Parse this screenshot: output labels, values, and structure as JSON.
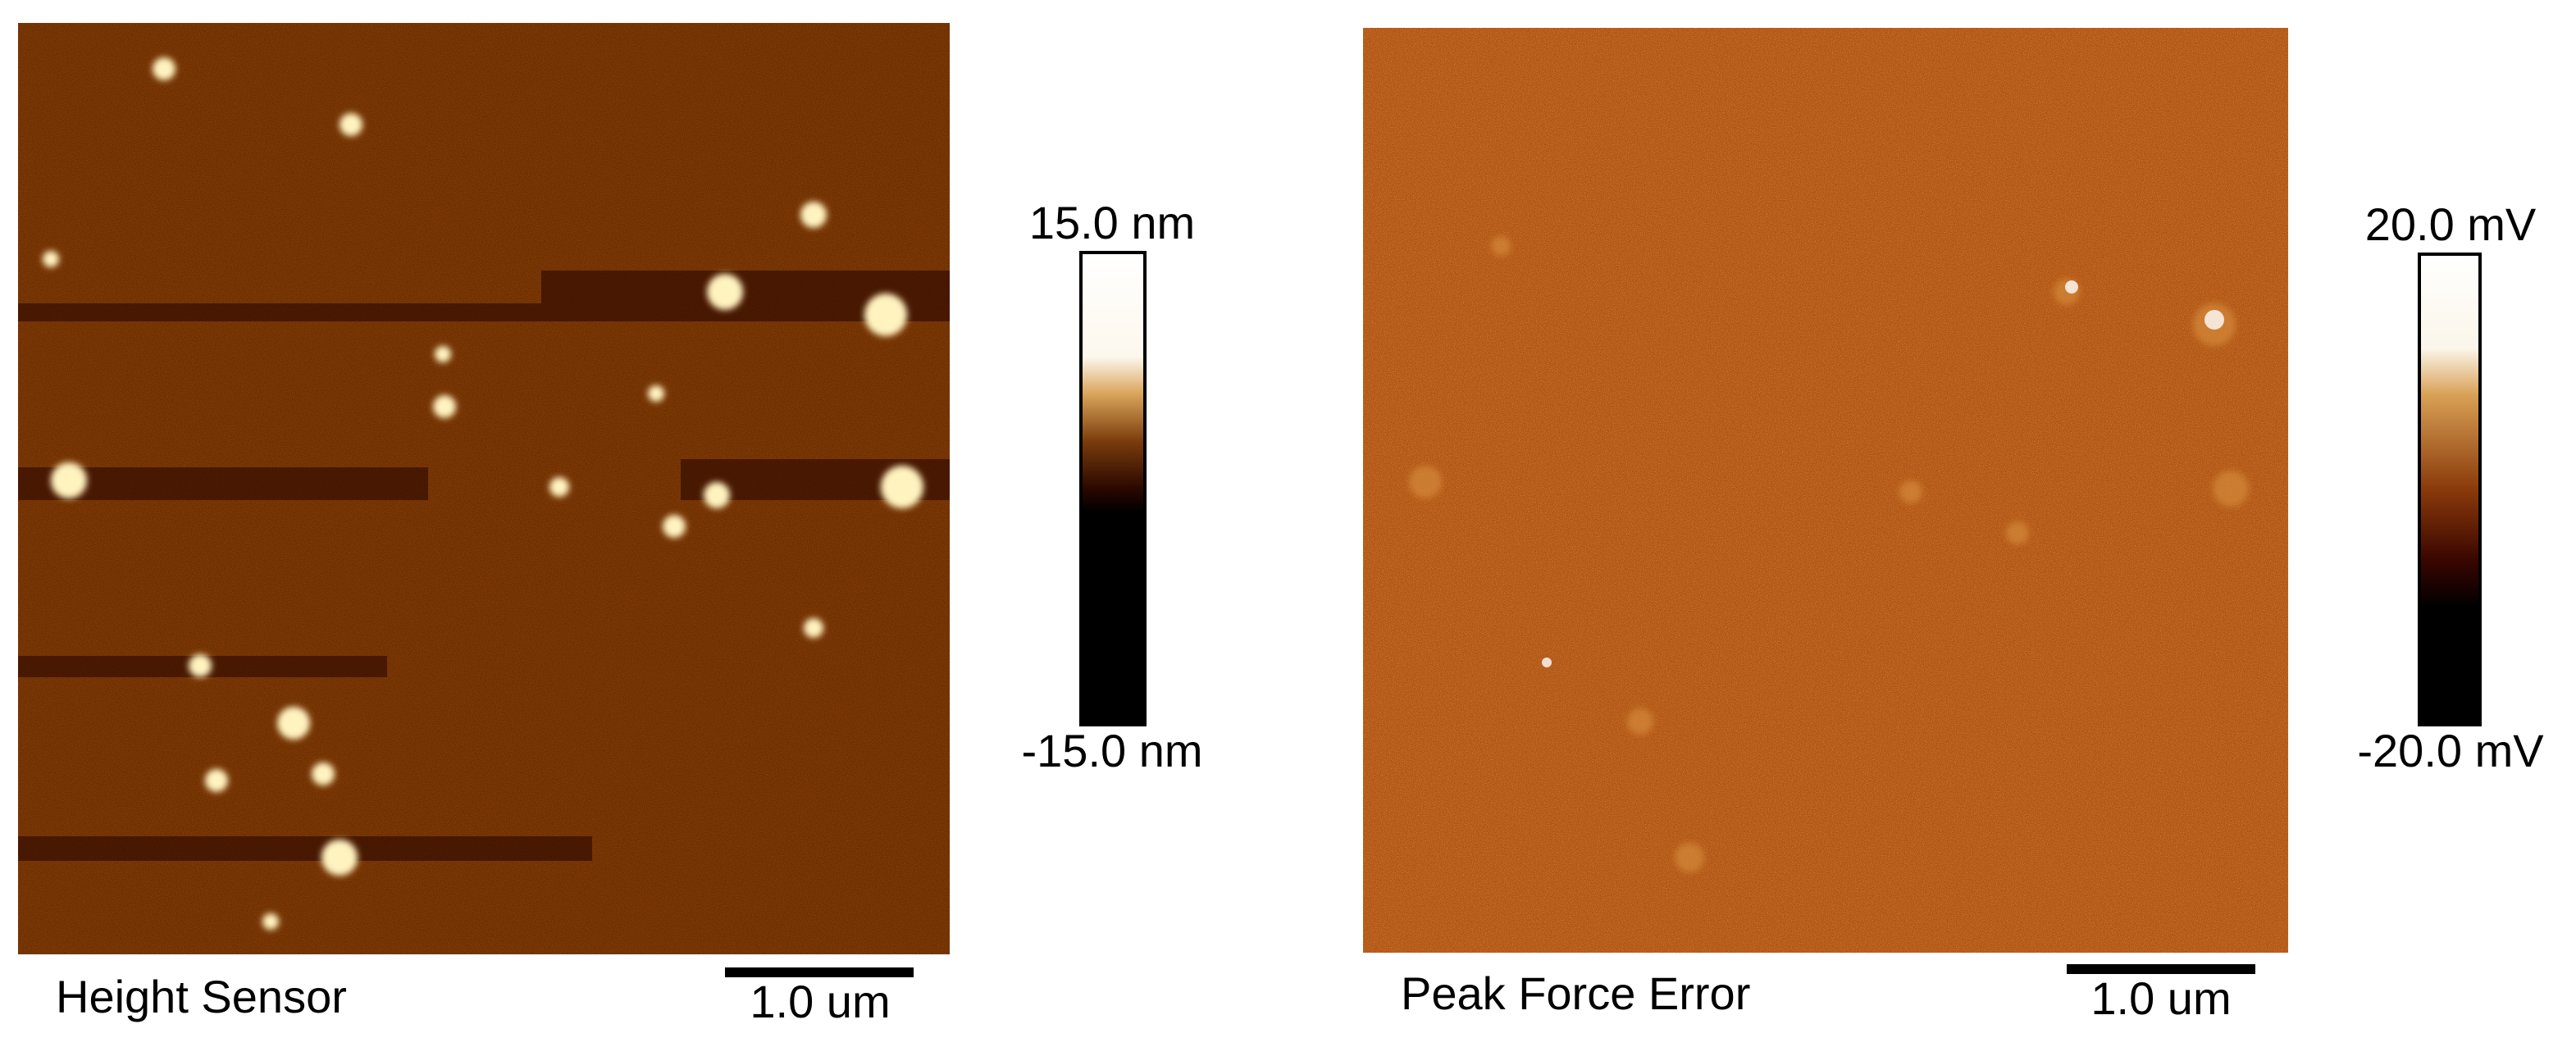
{
  "panels": [
    {
      "title": "Height Sensor",
      "scale_max": "15.0 nm",
      "scale_min": "-15.0 nm",
      "scale_bar": "1.0 um"
    },
    {
      "title": "Peak Force Error",
      "scale_max": "20.0 mV",
      "scale_min": "-20.0 mV",
      "scale_bar": "1.0 um"
    }
  ]
}
